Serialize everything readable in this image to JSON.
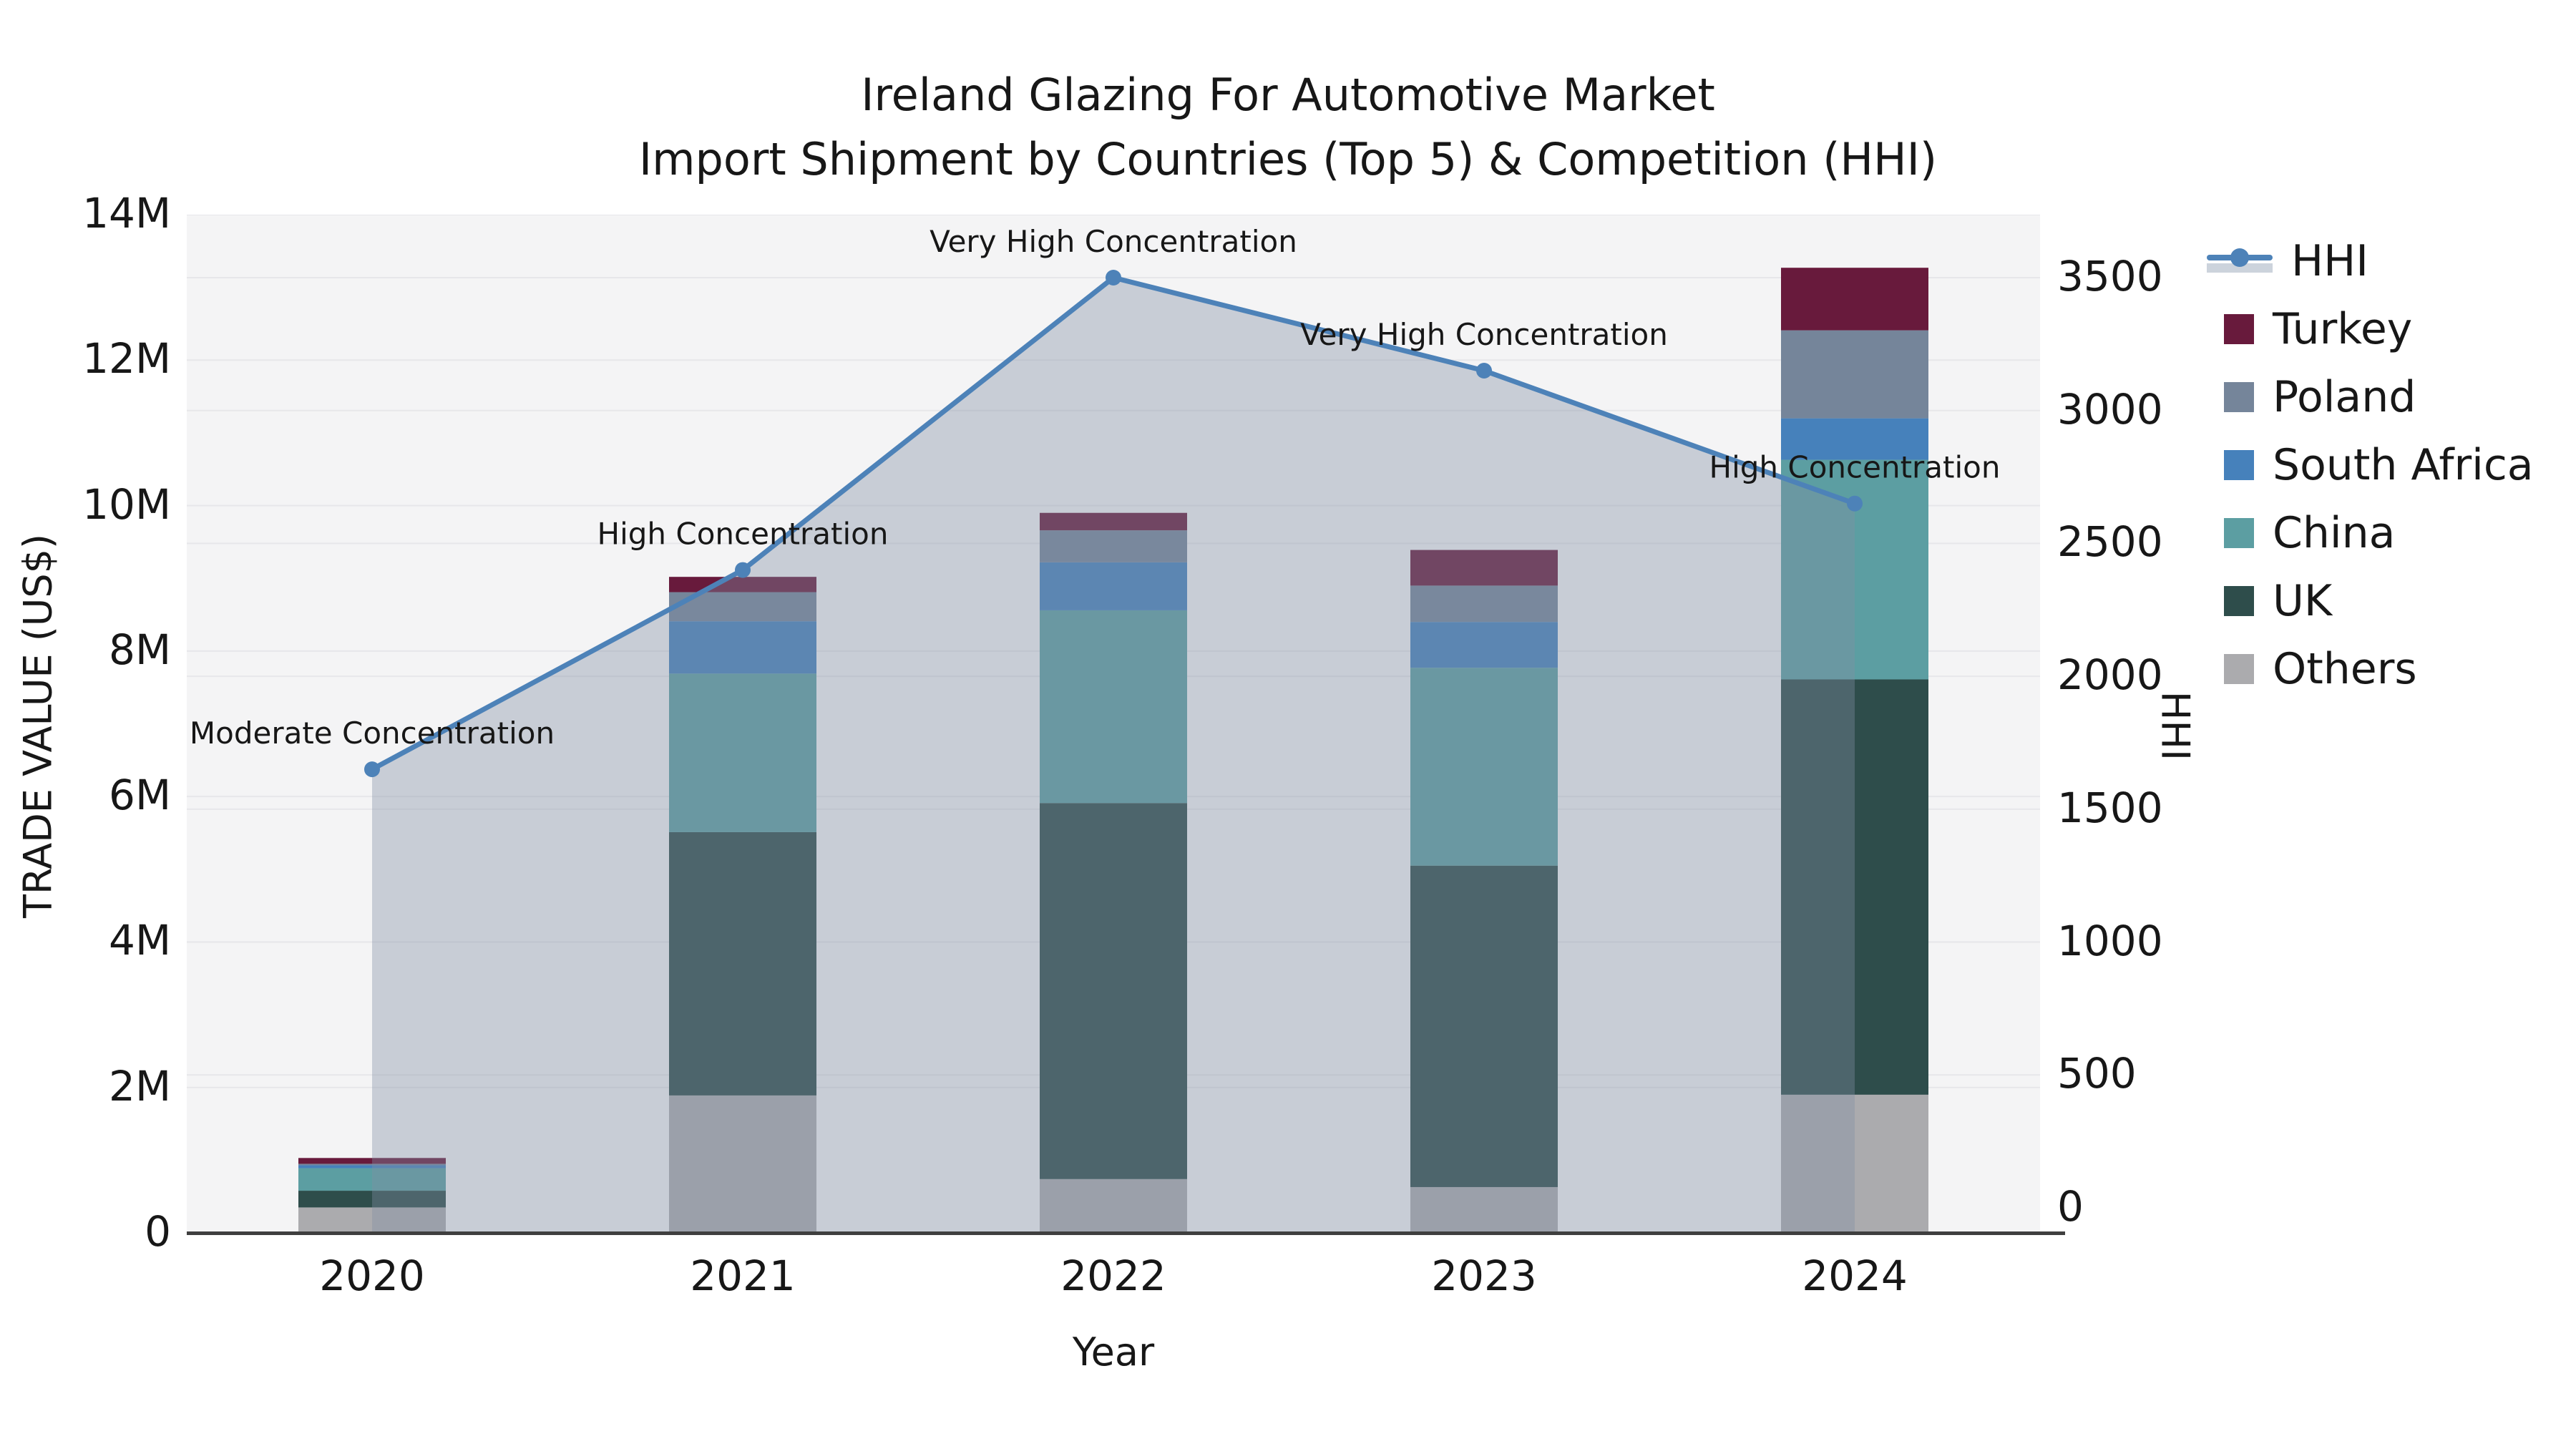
{
  "title": {
    "line1": "Ireland Glazing For Automotive Market",
    "line2": "Import Shipment by Countries (Top 5) & Competition (HHI)"
  },
  "axes": {
    "xlabel": "Year",
    "ylabel_left": "TRADE VALUE (US$)",
    "ylabel_right": "HHI",
    "left_ticks": [
      {
        "label": "0",
        "value": 0
      },
      {
        "label": "2M",
        "value": 2
      },
      {
        "label": "4M",
        "value": 4
      },
      {
        "label": "6M",
        "value": 6
      },
      {
        "label": "8M",
        "value": 8
      },
      {
        "label": "10M",
        "value": 10
      },
      {
        "label": "12M",
        "value": 12
      },
      {
        "label": "14M",
        "value": 14
      }
    ],
    "right_ticks": [
      {
        "label": "0",
        "value": 0
      },
      {
        "label": "500",
        "value": 500
      },
      {
        "label": "1000",
        "value": 1000
      },
      {
        "label": "1500",
        "value": 1500
      },
      {
        "label": "2000",
        "value": 2000
      },
      {
        "label": "2500",
        "value": 2500
      },
      {
        "label": "3000",
        "value": 3000
      },
      {
        "label": "3500",
        "value": 3500
      }
    ]
  },
  "chart_data": {
    "type": "bar",
    "subtype": "stacked-bars-with-line",
    "title": "Ireland Glazing For Automotive Market — Import Shipment by Countries (Top 5) & Competition (HHI)",
    "xlabel": "Year",
    "ylabel": "TRADE VALUE (US$)",
    "ylabel_secondary": "HHI",
    "ylim_left_M": [
      0,
      14
    ],
    "ylim_right": [
      0,
      3500
    ],
    "grid": true,
    "legend_position": "right",
    "categories": [
      "2020",
      "2021",
      "2022",
      "2023",
      "2024"
    ],
    "series": [
      {
        "name": "Others",
        "color": "#ababae",
        "values_M": [
          0.35,
          1.89,
          0.74,
          0.63,
          1.9
        ]
      },
      {
        "name": "UK",
        "color": "#2e4d4b",
        "values_M": [
          0.23,
          3.62,
          5.17,
          4.42,
          5.71
        ]
      },
      {
        "name": "China",
        "color": "#5c9ea2",
        "values_M": [
          0.31,
          2.18,
          2.65,
          2.72,
          3.02
        ]
      },
      {
        "name": "South Africa",
        "color": "#4681bb",
        "values_M": [
          0.04,
          0.72,
          0.66,
          0.63,
          0.57
        ]
      },
      {
        "name": "Poland",
        "color": "#75859a",
        "values_M": [
          0.02,
          0.4,
          0.44,
          0.5,
          1.21
        ]
      },
      {
        "name": "Turkey",
        "color": "#681a3c",
        "values_M": [
          0.08,
          0.21,
          0.24,
          0.49,
          0.86
        ]
      }
    ],
    "totals_M": [
      1.03,
      9.02,
      9.9,
      9.39,
      13.27
    ],
    "line_series": {
      "name": "HHI",
      "color": "#4d82b8",
      "fill_color": "rgba(128,142,162,0.38)",
      "values": [
        1650,
        2400,
        3500,
        3150,
        2650
      ]
    },
    "annotations": [
      {
        "year": "2020",
        "text": "Moderate Concentration"
      },
      {
        "year": "2021",
        "text": "High Concentration"
      },
      {
        "year": "2022",
        "text": "Very High Concentration"
      },
      {
        "year": "2023",
        "text": "Very High Concentration"
      },
      {
        "year": "2024",
        "text": "High Concentration"
      }
    ]
  },
  "legend": {
    "hhi_label": "HHI",
    "order": [
      "Turkey",
      "Poland",
      "South Africa",
      "China",
      "UK",
      "Others"
    ]
  },
  "style": {
    "plot_bg": "#f4f4f5",
    "grid_color": "#e7e7ea",
    "axis_line_color": "#3f3f3f",
    "text_color": "#171717"
  }
}
